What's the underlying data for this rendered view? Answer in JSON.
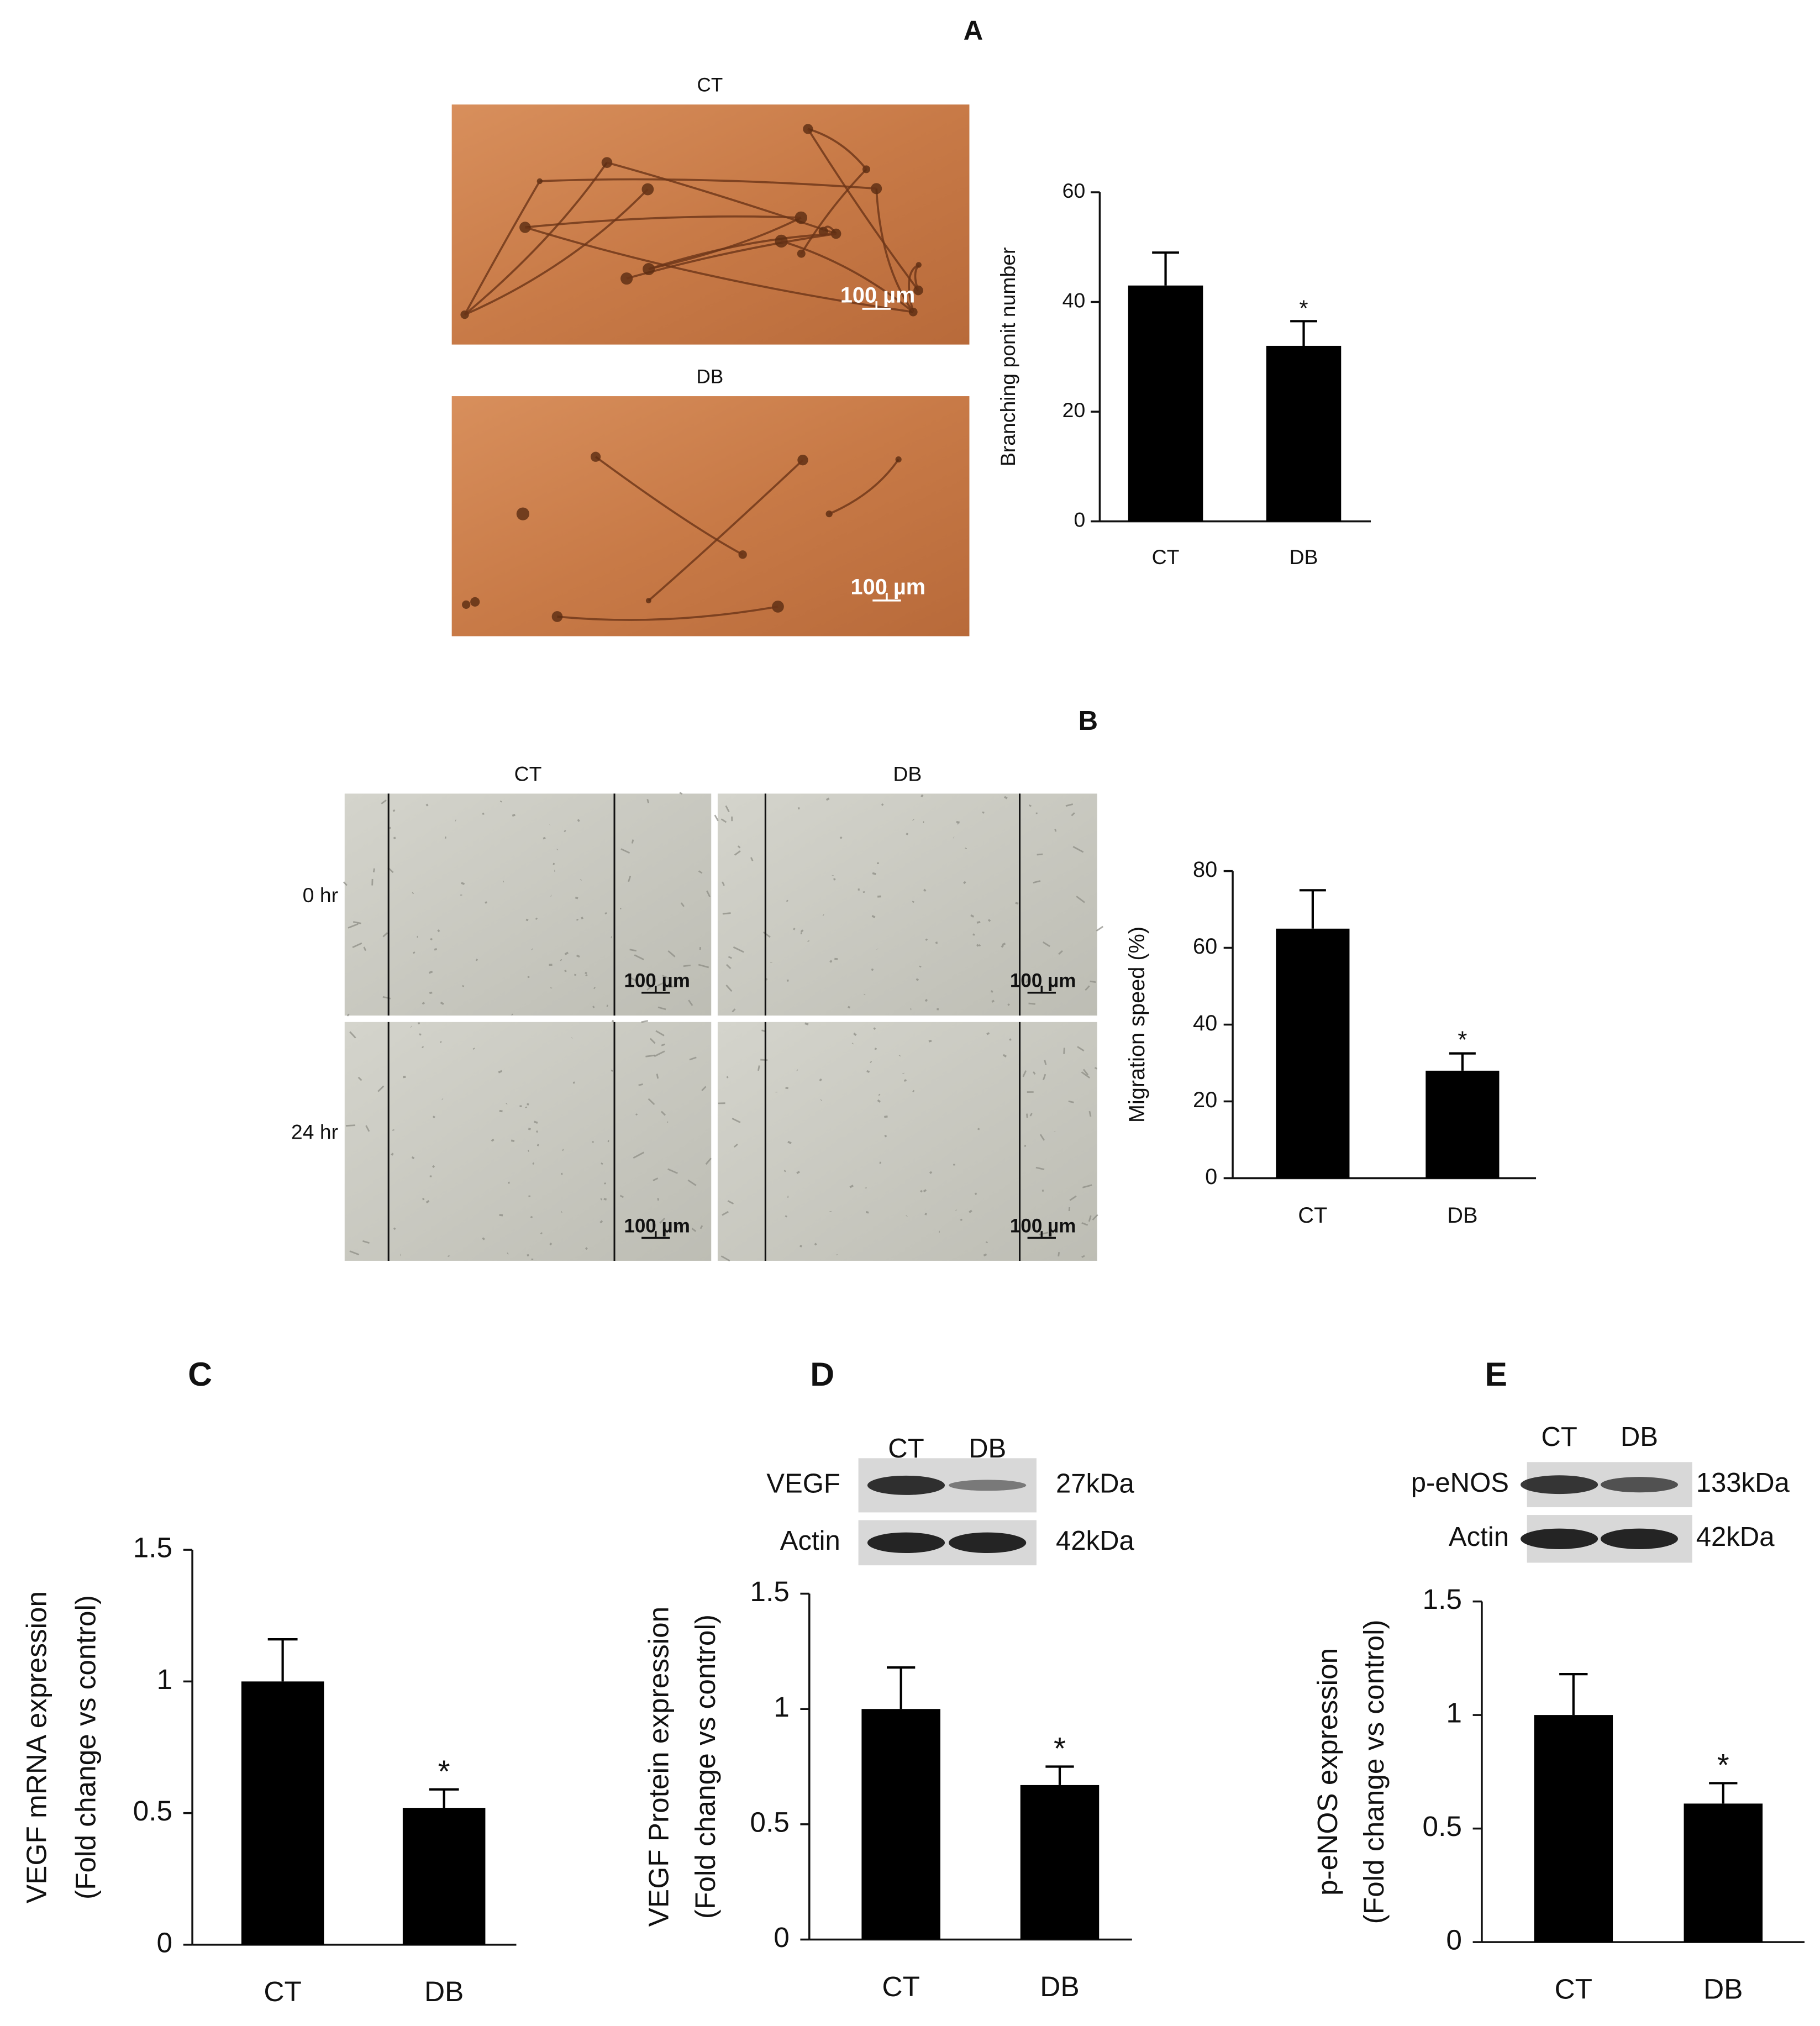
{
  "chart_data": [
    {
      "type": "bar",
      "panel": "A",
      "ylabel": [
        "Branching ponit number"
      ],
      "categories": [
        "CT",
        "DB"
      ],
      "values": [
        43,
        32
      ],
      "errors": [
        6,
        4.5
      ],
      "significance": [
        null,
        "*"
      ],
      "color": "#000000",
      "ylim": [
        0,
        60
      ],
      "yticks": [
        0,
        20,
        40,
        60
      ]
    },
    {
      "type": "bar",
      "panel": "B",
      "ylabel": [
        "Migration speed (%)"
      ],
      "categories": [
        "CT",
        "DB"
      ],
      "values": [
        65,
        28
      ],
      "errors": [
        10,
        4.5
      ],
      "significance": [
        null,
        "*"
      ],
      "color": "#000000",
      "ylim": [
        0,
        80
      ],
      "yticks": [
        0,
        20,
        40,
        60,
        80
      ]
    },
    {
      "type": "bar",
      "panel": "C",
      "ylabel": [
        "VEGF mRNA expression",
        "(Fold change vs control)"
      ],
      "categories": [
        "CT",
        "DB"
      ],
      "values": [
        1.0,
        0.52
      ],
      "errors": [
        0.16,
        0.07
      ],
      "significance": [
        null,
        "*"
      ],
      "color": "#000000",
      "ylim": [
        0,
        1.5
      ],
      "yticks": [
        0,
        0.5,
        1,
        1.5
      ]
    },
    {
      "type": "bar",
      "panel": "D",
      "ylabel": [
        "VEGF Protein expression",
        "(Fold change vs control)"
      ],
      "categories": [
        "CT",
        "DB"
      ],
      "values": [
        1.0,
        0.67
      ],
      "errors": [
        0.18,
        0.08
      ],
      "significance": [
        null,
        "*"
      ],
      "color": "#000000",
      "ylim": [
        0,
        1.5
      ],
      "yticks": [
        0,
        0.5,
        1,
        1.5
      ]
    },
    {
      "type": "bar",
      "panel": "E",
      "ylabel": [
        "p-eNOS expression",
        "(Fold change vs control)"
      ],
      "categories": [
        "CT",
        "DB"
      ],
      "values": [
        1.0,
        0.61
      ],
      "errors": [
        0.18,
        0.09
      ],
      "significance": [
        null,
        "*"
      ],
      "color": "#000000",
      "ylim": [
        0,
        1.5
      ],
      "yticks": [
        0,
        0.5,
        1,
        1.5
      ]
    }
  ],
  "figure_a": {
    "images": [
      {
        "label": "CT",
        "scale_bar": "100 µm"
      },
      {
        "label": "DB",
        "scale_bar": "100 µm"
      }
    ]
  },
  "figure_b": {
    "columns": [
      "CT",
      "DB"
    ],
    "rows": [
      "0 hr",
      "24 hr"
    ],
    "scale_bars": [
      [
        "100 µm",
        "100 µm"
      ],
      [
        "100 µm",
        "100 µm"
      ]
    ]
  },
  "blots": [
    {
      "lanes": [
        "CT",
        "DB"
      ],
      "bands": [
        {
          "name": "VEGF",
          "size": "27kDa"
        },
        {
          "name": "Actin",
          "size": "42kDa"
        }
      ]
    },
    {
      "lanes": [
        "CT",
        "DB"
      ],
      "bands": [
        {
          "name": "p-eNOS",
          "size": "133kDa"
        },
        {
          "name": "Actin",
          "size": "42kDa"
        }
      ]
    }
  ]
}
